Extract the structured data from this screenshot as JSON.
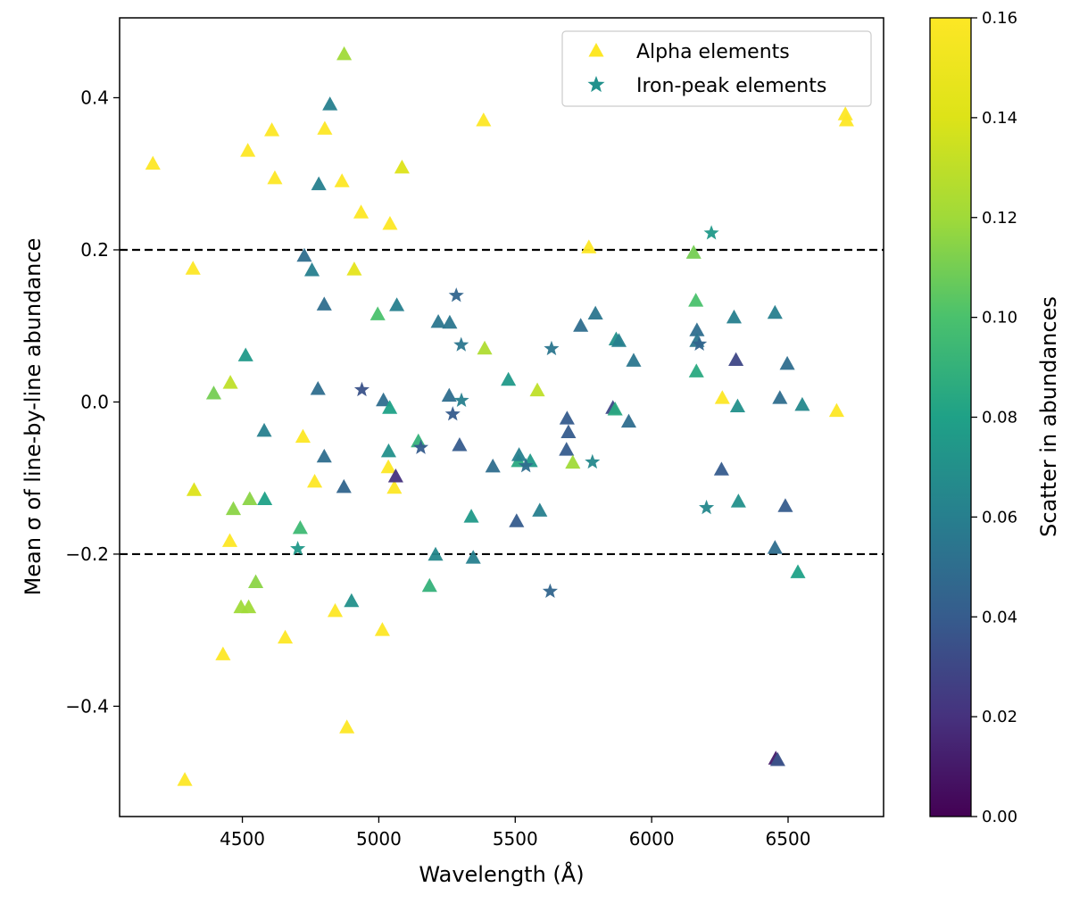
{
  "chart_data": {
    "type": "scatter",
    "xlabel": "Wavelength (Å)",
    "ylabel": "Mean σ of line-by-line abundance",
    "xlim": [
      4050,
      6850
    ],
    "ylim": [
      -0.545,
      0.505
    ],
    "xticks": [
      4500,
      5000,
      5500,
      6000,
      6500
    ],
    "xtick_labels": [
      "4500",
      "5000",
      "5500",
      "6000",
      "6500"
    ],
    "yticks": [
      -0.4,
      -0.2,
      0.0,
      0.2,
      0.4
    ],
    "ytick_labels": [
      "−0.4",
      "−0.2",
      "0.0",
      "0.2",
      "0.4"
    ],
    "reference_lines": [
      0.2,
      -0.2
    ],
    "legend": {
      "position": "top-right",
      "entries": [
        {
          "label": "Alpha elements",
          "marker": "triangle",
          "color": "#fde725"
        },
        {
          "label": "Iron-peak elements",
          "marker": "star",
          "color": "#21918c"
        }
      ]
    },
    "colorbar": {
      "label": "Scatter in abundances",
      "range": [
        0.0,
        0.16
      ],
      "ticks": [
        0.0,
        0.02,
        0.04,
        0.06,
        0.08,
        0.1,
        0.12,
        0.14,
        0.16
      ],
      "tick_labels": [
        "0.00",
        "0.02",
        "0.04",
        "0.06",
        "0.08",
        "0.10",
        "0.12",
        "0.14",
        "0.16"
      ],
      "colormap": "viridis"
    },
    "series": [
      {
        "name": "Alpha elements",
        "marker": "triangle",
        "points": [
          [
            4172,
            0.313,
            0.16
          ],
          [
            4289,
            -0.497,
            0.16
          ],
          [
            4319,
            0.175,
            0.16
          ],
          [
            4323,
            -0.116,
            0.14
          ],
          [
            4395,
            0.011,
            0.11
          ],
          [
            4429,
            -0.332,
            0.16
          ],
          [
            4454,
            -0.183,
            0.16
          ],
          [
            4456,
            0.025,
            0.13
          ],
          [
            4467,
            -0.141,
            0.115
          ],
          [
            4495,
            -0.27,
            0.12
          ],
          [
            4512,
            0.061,
            0.075
          ],
          [
            4523,
            -0.27,
            0.12
          ],
          [
            4520,
            0.33,
            0.16
          ],
          [
            4527,
            -0.128,
            0.115
          ],
          [
            4549,
            -0.237,
            0.115
          ],
          [
            4580,
            -0.038,
            0.06
          ],
          [
            4582,
            -0.128,
            0.08
          ],
          [
            4608,
            0.357,
            0.16
          ],
          [
            4619,
            0.294,
            0.16
          ],
          [
            4657,
            -0.31,
            0.16
          ],
          [
            4712,
            -0.166,
            0.095
          ],
          [
            4722,
            -0.046,
            0.16
          ],
          [
            4727,
            0.192,
            0.05
          ],
          [
            4755,
            0.173,
            0.06
          ],
          [
            4765,
            -0.105,
            0.16
          ],
          [
            4777,
            0.017,
            0.05
          ],
          [
            4780,
            0.286,
            0.06
          ],
          [
            4800,
            -0.072,
            0.05
          ],
          [
            4800,
            0.128,
            0.05
          ],
          [
            4802,
            0.359,
            0.16
          ],
          [
            4821,
            0.391,
            0.06
          ],
          [
            4840,
            -0.275,
            0.16
          ],
          [
            4865,
            0.29,
            0.16
          ],
          [
            4872,
            -0.112,
            0.045
          ],
          [
            4873,
            0.457,
            0.12
          ],
          [
            4883,
            -0.428,
            0.16
          ],
          [
            4900,
            -0.262,
            0.07
          ],
          [
            4910,
            0.174,
            0.145
          ],
          [
            4935,
            0.249,
            0.16
          ],
          [
            4996,
            0.115,
            0.1
          ],
          [
            5013,
            -0.3,
            0.16
          ],
          [
            5017,
            0.002,
            0.05
          ],
          [
            5035,
            -0.086,
            0.16
          ],
          [
            5036,
            -0.065,
            0.07
          ],
          [
            5040,
            -0.008,
            0.08
          ],
          [
            5041,
            0.234,
            0.16
          ],
          [
            5057,
            -0.113,
            0.16
          ],
          [
            5062,
            -0.098,
            0.02
          ],
          [
            5066,
            0.127,
            0.06
          ],
          [
            5085,
            0.308,
            0.14
          ],
          [
            5145,
            -0.052,
            0.09
          ],
          [
            5186,
            -0.242,
            0.09
          ],
          [
            5208,
            -0.201,
            0.065
          ],
          [
            5218,
            0.105,
            0.055
          ],
          [
            5258,
            0.008,
            0.05
          ],
          [
            5260,
            0.104,
            0.055
          ],
          [
            5296,
            -0.057,
            0.04
          ],
          [
            5339,
            -0.151,
            0.075
          ],
          [
            5346,
            -0.205,
            0.06
          ],
          [
            5384,
            0.37,
            0.16
          ],
          [
            5388,
            0.07,
            0.125
          ],
          [
            5418,
            -0.085,
            0.05
          ],
          [
            5475,
            0.029,
            0.075
          ],
          [
            5505,
            -0.157,
            0.04
          ],
          [
            5512,
            -0.078,
            0.085
          ],
          [
            5514,
            -0.07,
            0.06
          ],
          [
            5555,
            -0.078,
            0.075
          ],
          [
            5581,
            0.015,
            0.13
          ],
          [
            5590,
            -0.143,
            0.06
          ],
          [
            5688,
            -0.063,
            0.04
          ],
          [
            5690,
            -0.022,
            0.04
          ],
          [
            5695,
            -0.04,
            0.04
          ],
          [
            5711,
            -0.08,
            0.12
          ],
          [
            5740,
            0.1,
            0.05
          ],
          [
            5770,
            0.203,
            0.16
          ],
          [
            5794,
            0.116,
            0.055
          ],
          [
            5858,
            -0.008,
            0.03
          ],
          [
            5866,
            -0.01,
            0.085
          ],
          [
            5870,
            0.082,
            0.07
          ],
          [
            5880,
            0.08,
            0.06
          ],
          [
            5916,
            -0.026,
            0.05
          ],
          [
            5934,
            0.054,
            0.055
          ],
          [
            6154,
            0.196,
            0.11
          ],
          [
            6162,
            0.133,
            0.1
          ],
          [
            6164,
            0.04,
            0.085
          ],
          [
            6166,
            0.094,
            0.05
          ],
          [
            6166,
            0.08,
            0.055
          ],
          [
            6256,
            -0.089,
            0.04
          ],
          [
            6259,
            0.005,
            0.16
          ],
          [
            6302,
            0.111,
            0.06
          ],
          [
            6309,
            0.055,
            0.03
          ],
          [
            6315,
            -0.006,
            0.07
          ],
          [
            6318,
            -0.131,
            0.07
          ],
          [
            6452,
            0.117,
            0.06
          ],
          [
            6452,
            -0.192,
            0.05
          ],
          [
            6455,
            -0.469,
            0.01
          ],
          [
            6462,
            -0.471,
            0.035
          ],
          [
            6470,
            0.005,
            0.05
          ],
          [
            6490,
            -0.137,
            0.04
          ],
          [
            6497,
            0.05,
            0.05
          ],
          [
            6536,
            -0.224,
            0.08
          ],
          [
            6552,
            -0.004,
            0.065
          ],
          [
            6678,
            -0.012,
            0.16
          ],
          [
            6710,
            0.378,
            0.16
          ],
          [
            6714,
            0.37,
            0.16
          ]
        ]
      },
      {
        "name": "Iron-peak elements",
        "marker": "star",
        "points": [
          [
            4703,
            -0.193,
            0.075
          ],
          [
            4938,
            0.016,
            0.035
          ],
          [
            5154,
            -0.06,
            0.04
          ],
          [
            5271,
            -0.016,
            0.04
          ],
          [
            5284,
            0.14,
            0.045
          ],
          [
            5302,
            0.075,
            0.055
          ],
          [
            5303,
            0.002,
            0.06
          ],
          [
            5539,
            -0.084,
            0.05
          ],
          [
            5628,
            -0.249,
            0.045
          ],
          [
            5633,
            0.07,
            0.055
          ],
          [
            5783,
            -0.079,
            0.065
          ],
          [
            6175,
            0.076,
            0.045
          ],
          [
            6201,
            -0.139,
            0.065
          ],
          [
            6219,
            0.222,
            0.075
          ]
        ]
      }
    ]
  }
}
